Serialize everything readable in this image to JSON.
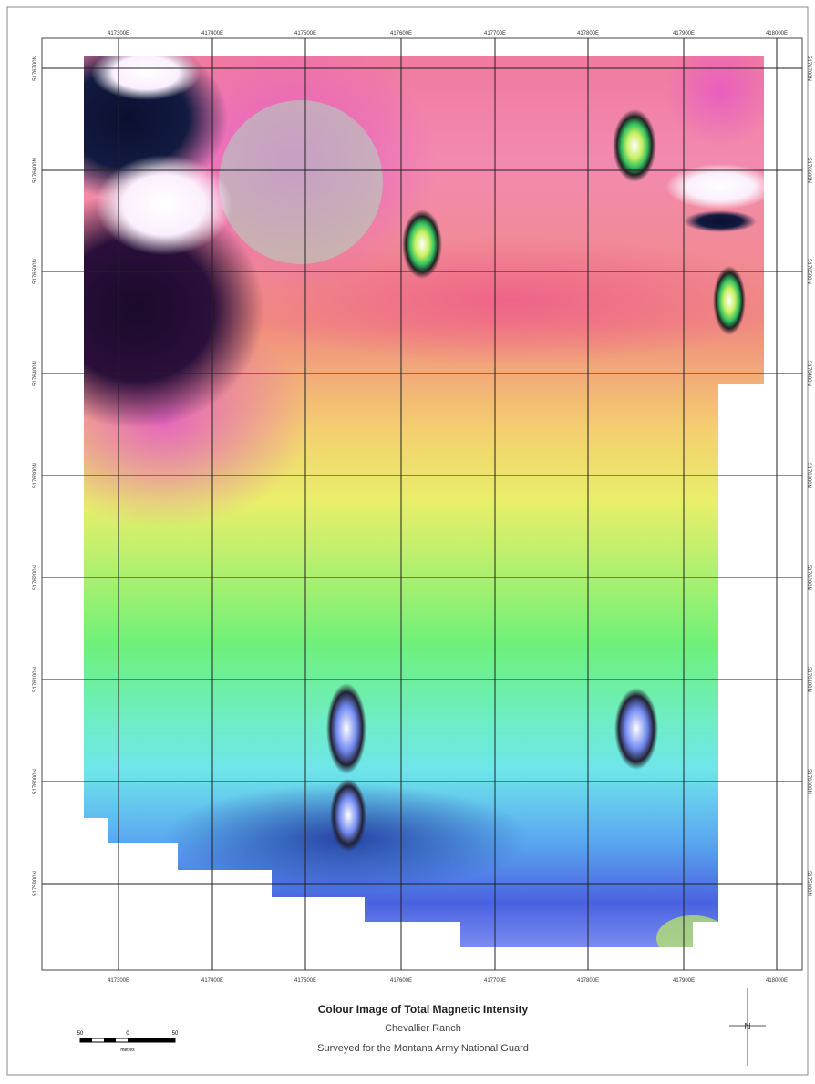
{
  "map": {
    "title": "Colour Image of Total Magnetic Intensity",
    "subtitle": "Chevallier Ranch",
    "note": "Surveyed for the Montana Army National Guard",
    "x_labels_top": [
      "417300E",
      "417400E",
      "417500E",
      "417600E",
      "417700E",
      "417800E",
      "417900E",
      "418000E"
    ],
    "x_labels_bottom": [
      "417300E",
      "417400E",
      "417500E",
      "417600E",
      "417700E",
      "417800E",
      "417900E",
      "418000E"
    ],
    "y_labels_left": [
      "5176700N",
      "5176600N",
      "5176500N",
      "5176400N",
      "5176300N",
      "5176200N",
      "5176100N",
      "5176000N",
      "5175900N"
    ],
    "y_labels_right": [
      "5176700N",
      "5176600N",
      "5176500N",
      "5176400N",
      "5176300N",
      "5176200N",
      "5176100N",
      "5176000N",
      "5175900N"
    ],
    "scale_bar": {
      "labels": [
        "50",
        "0",
        "50"
      ],
      "unit": "metres"
    },
    "north_label": "N"
  }
}
